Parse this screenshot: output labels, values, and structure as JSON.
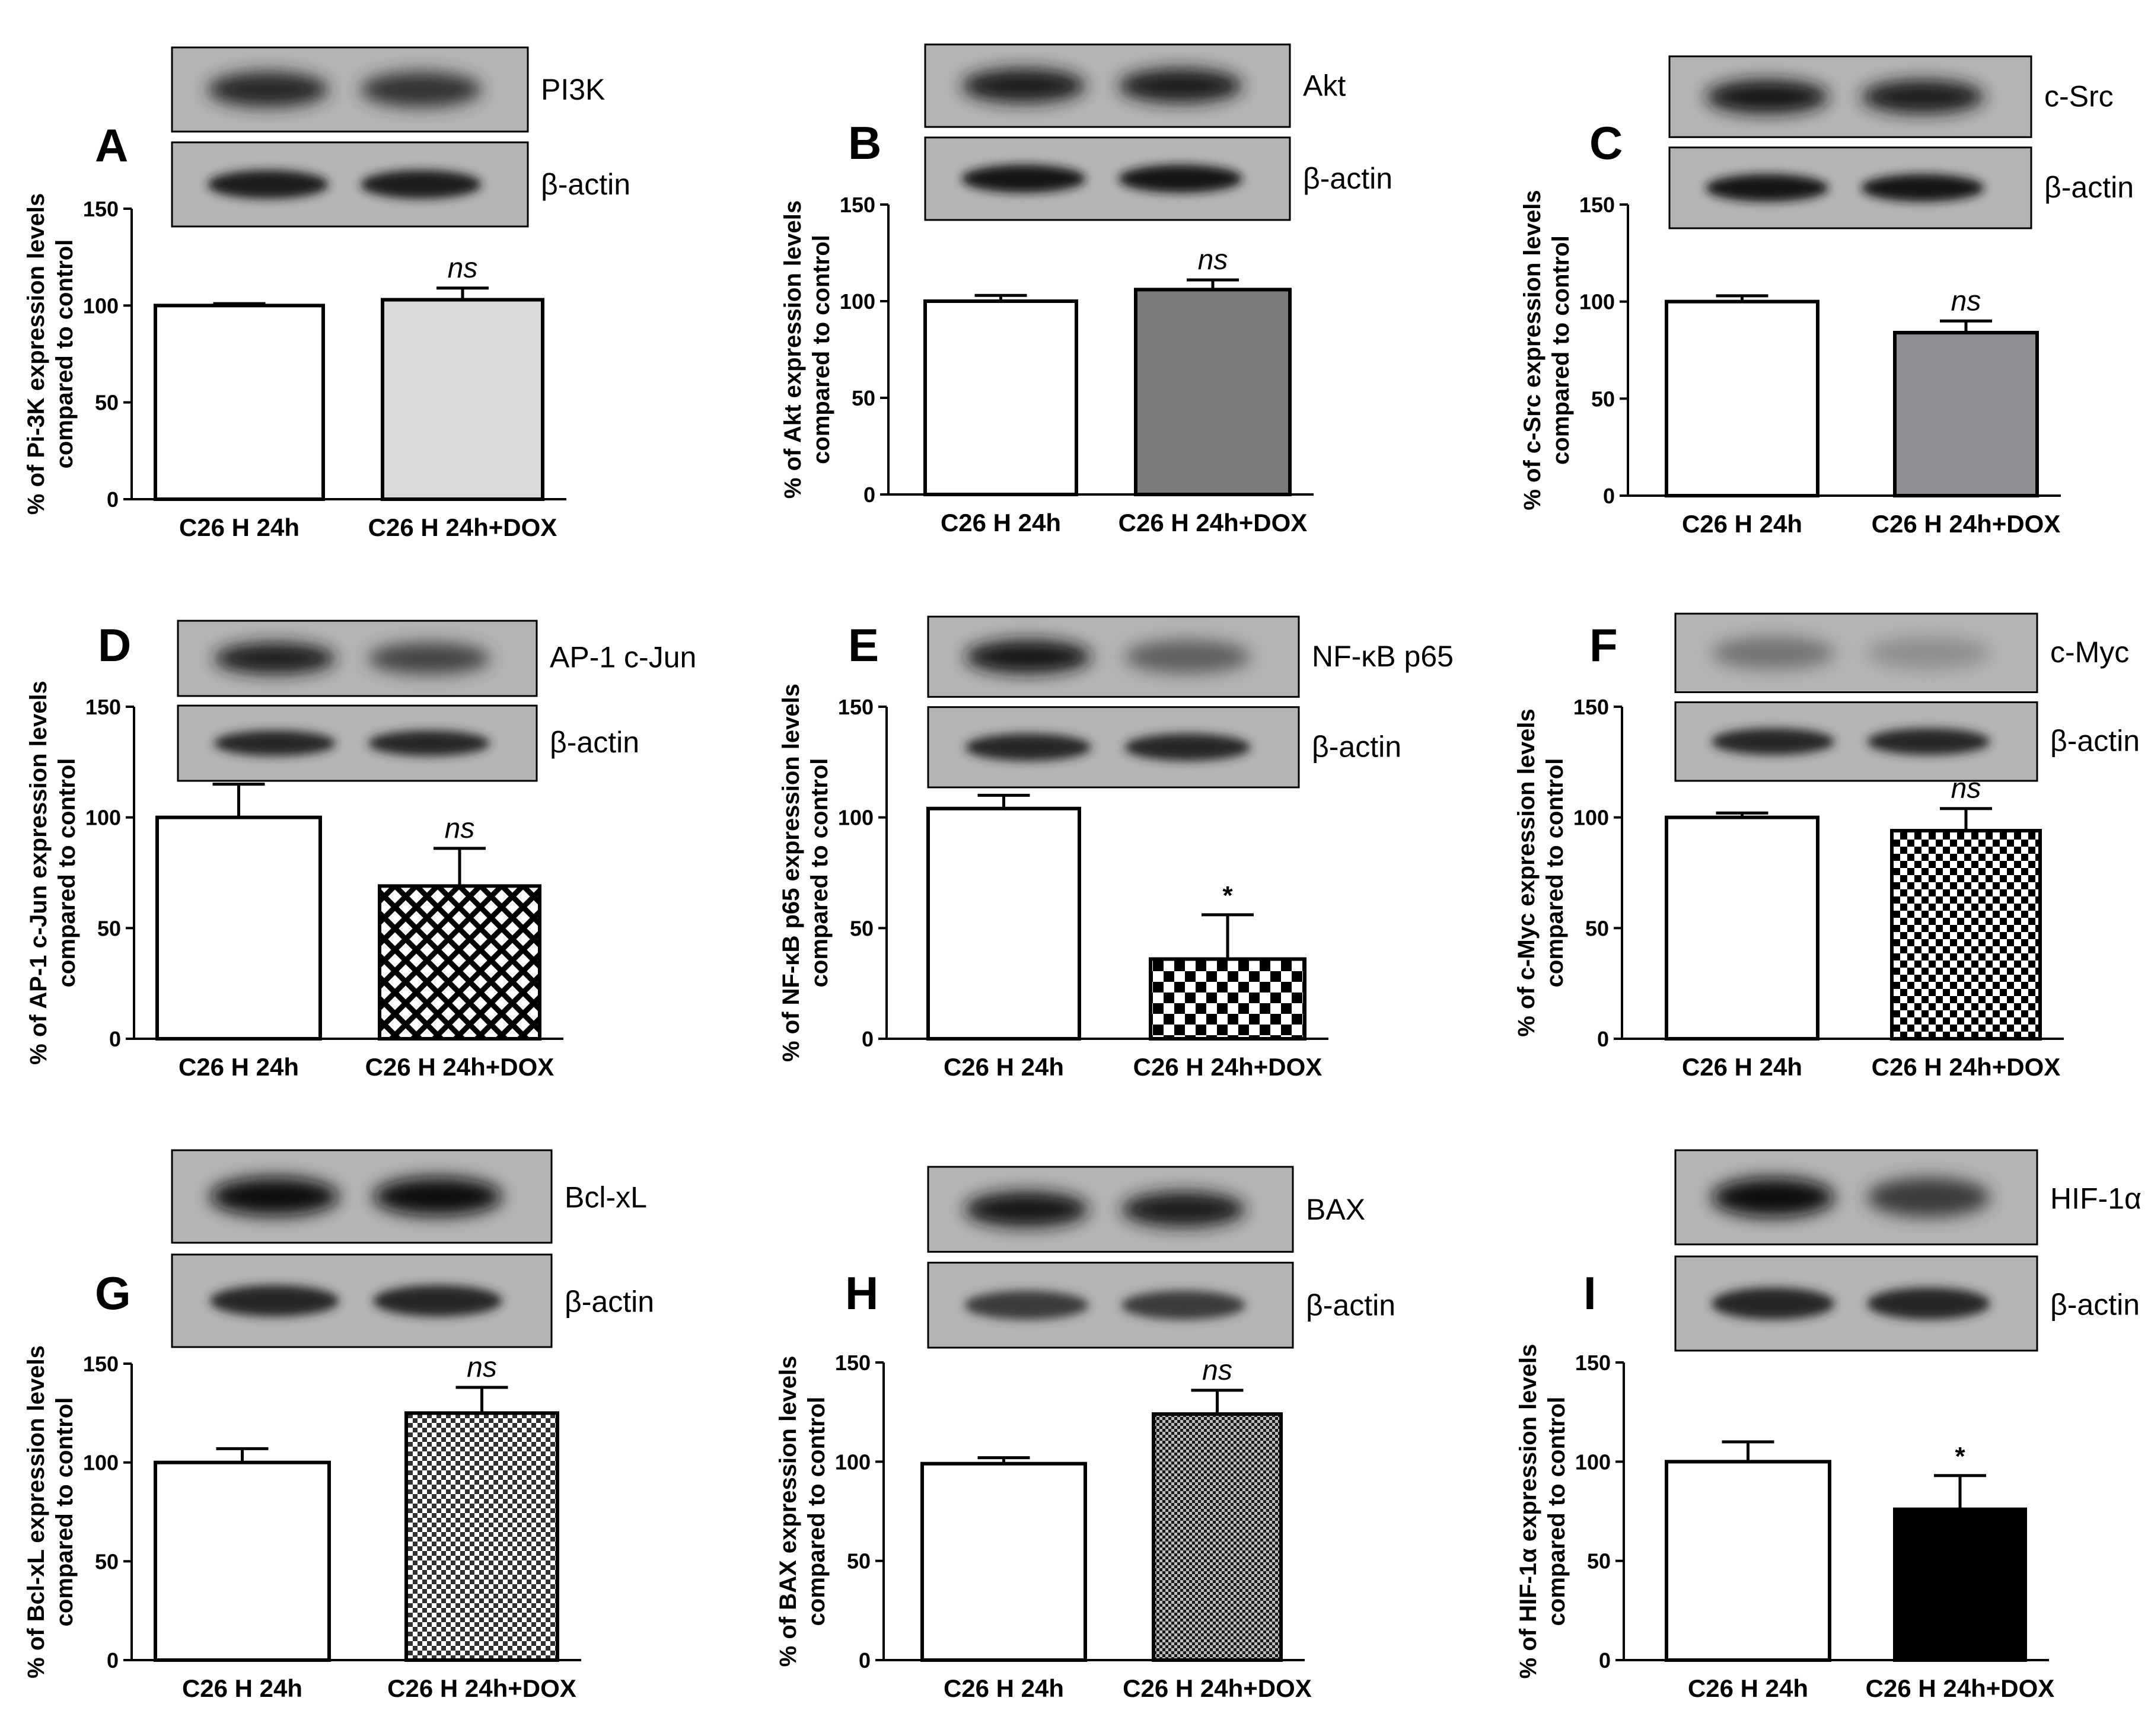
{
  "colors": {
    "axis": "#000000",
    "blot_bg": "#b4b4b4",
    "band": "#141414",
    "fill_white": "#ffffff",
    "fill_lightgray": "#d9d9db",
    "fill_darkgray": "#7b7b7b",
    "fill_midgray": "#8f8f93",
    "fill_black": "#000000"
  },
  "categories": [
    "C26 H 24h",
    "C26 H 24h+DOX"
  ],
  "yticks": [
    "0",
    "50",
    "100",
    "150"
  ],
  "chart_data": [
    {
      "type": "bar",
      "panel": "A",
      "blot_label": "PI3K",
      "loading_label": "β-actin",
      "ylabel_line1": "% of Pi-3K expression levels",
      "ylabel_line2": "compared to control",
      "categories": [
        "C26 H 24h",
        "C26 H 24h+DOX"
      ],
      "values": [
        100,
        103
      ],
      "errors": [
        1,
        6
      ],
      "ylim": [
        0,
        150
      ],
      "fills": [
        "white",
        "lightgray"
      ],
      "annotations": [
        "",
        "ns"
      ],
      "band_intensity": [
        [
          0.85,
          0.8
        ],
        [
          0.9,
          0.9
        ]
      ]
    },
    {
      "type": "bar",
      "panel": "B",
      "blot_label": "Akt",
      "loading_label": "β-actin",
      "ylabel_line1": "% of Akt expression levels",
      "ylabel_line2": "compared to control",
      "categories": [
        "C26 H 24h",
        "C26 H 24h+DOX"
      ],
      "values": [
        100,
        106
      ],
      "errors": [
        3,
        5
      ],
      "ylim": [
        0,
        150
      ],
      "fills": [
        "white",
        "darkgray"
      ],
      "annotations": [
        "",
        "ns"
      ],
      "band_intensity": [
        [
          0.9,
          0.9
        ],
        [
          0.95,
          0.95
        ]
      ]
    },
    {
      "type": "bar",
      "panel": "C",
      "blot_label": "c-Src",
      "loading_label": "β-actin",
      "ylabel_line1": "% of c-Src expression levels",
      "ylabel_line2": "compared to control",
      "categories": [
        "C26 H 24h",
        "C26 H 24h+DOX"
      ],
      "values": [
        100,
        84
      ],
      "errors": [
        3,
        6
      ],
      "ylim": [
        0,
        150
      ],
      "fills": [
        "white",
        "midgray"
      ],
      "annotations": [
        "",
        "ns"
      ],
      "band_intensity": [
        [
          0.95,
          0.9
        ],
        [
          0.95,
          0.95
        ]
      ]
    },
    {
      "type": "bar",
      "panel": "D",
      "blot_label": "AP-1 c-Jun",
      "loading_label": "β-actin",
      "ylabel_line1": "% of AP-1 c-Jun expression levels",
      "ylabel_line2": "compared to control",
      "categories": [
        "C26 H 24h",
        "C26 H 24h+DOX"
      ],
      "values": [
        100,
        69
      ],
      "errors": [
        15,
        17
      ],
      "ylim": [
        0,
        150
      ],
      "fills": [
        "white",
        "crosshatch"
      ],
      "annotations": [
        "",
        "ns"
      ],
      "band_intensity": [
        [
          0.9,
          0.7
        ],
        [
          0.85,
          0.85
        ]
      ]
    },
    {
      "type": "bar",
      "panel": "E",
      "blot_label": "NF-κB p65",
      "loading_label": "β-actin",
      "ylabel_line1": "% of NF-κB p65 expression levels",
      "ylabel_line2": "compared to control",
      "categories": [
        "C26 H 24h",
        "C26 H 24h+DOX"
      ],
      "values": [
        104,
        36
      ],
      "errors": [
        6,
        20
      ],
      "ylim": [
        0,
        150
      ],
      "fills": [
        "white",
        "checker_large"
      ],
      "annotations": [
        "",
        "*"
      ],
      "band_intensity": [
        [
          0.95,
          0.55
        ],
        [
          0.85,
          0.85
        ]
      ]
    },
    {
      "type": "bar",
      "panel": "F",
      "blot_label": "c-Myc",
      "loading_label": "β-actin",
      "ylabel_line1": "% of c-Myc expression levels",
      "ylabel_line2": "compared to control",
      "categories": [
        "C26 H 24h",
        "C26 H 24h+DOX"
      ],
      "values": [
        100,
        94
      ],
      "errors": [
        2,
        10
      ],
      "ylim": [
        0,
        150
      ],
      "fills": [
        "white",
        "checker_medium"
      ],
      "annotations": [
        "",
        "ns"
      ],
      "band_intensity": [
        [
          0.45,
          0.3
        ],
        [
          0.85,
          0.85
        ]
      ]
    },
    {
      "type": "bar",
      "panel": "G",
      "blot_label": "Bcl-xL",
      "loading_label": "β-actin",
      "ylabel_line1": "% of Bcl-xL expression levels",
      "ylabel_line2": "compared to control",
      "categories": [
        "C26 H 24h",
        "C26 H 24h+DOX"
      ],
      "values": [
        100,
        125
      ],
      "errors": [
        7,
        13
      ],
      "ylim": [
        0,
        150
      ],
      "fills": [
        "white",
        "checker_small"
      ],
      "annotations": [
        "",
        "ns"
      ],
      "band_intensity": [
        [
          1.0,
          1.0
        ],
        [
          0.85,
          0.85
        ]
      ]
    },
    {
      "type": "bar",
      "panel": "H",
      "blot_label": "BAX",
      "loading_label": "β-actin",
      "ylabel_line1": "% of BAX expression levels",
      "ylabel_line2": "compared to control",
      "categories": [
        "C26 H 24h",
        "C26 H 24h+DOX"
      ],
      "values": [
        99,
        124
      ],
      "errors": [
        3,
        12
      ],
      "ylim": [
        0,
        150
      ],
      "fills": [
        "white",
        "checker_tiny"
      ],
      "annotations": [
        "",
        "ns"
      ],
      "band_intensity": [
        [
          0.95,
          0.9
        ],
        [
          0.75,
          0.75
        ]
      ]
    },
    {
      "type": "bar",
      "panel": "I",
      "blot_label": "HIF-1α",
      "loading_label": "β-actin",
      "ylabel_line1": "% of  HIF-1α expression levels",
      "ylabel_line2": "compared to control",
      "categories": [
        "C26 H 24h",
        "C26 H 24h+DOX"
      ],
      "values": [
        100,
        76
      ],
      "errors": [
        10,
        17
      ],
      "ylim": [
        0,
        150
      ],
      "fills": [
        "white",
        "black"
      ],
      "annotations": [
        "",
        "*"
      ],
      "band_intensity": [
        [
          1.0,
          0.75
        ],
        [
          0.85,
          0.85
        ]
      ]
    }
  ]
}
